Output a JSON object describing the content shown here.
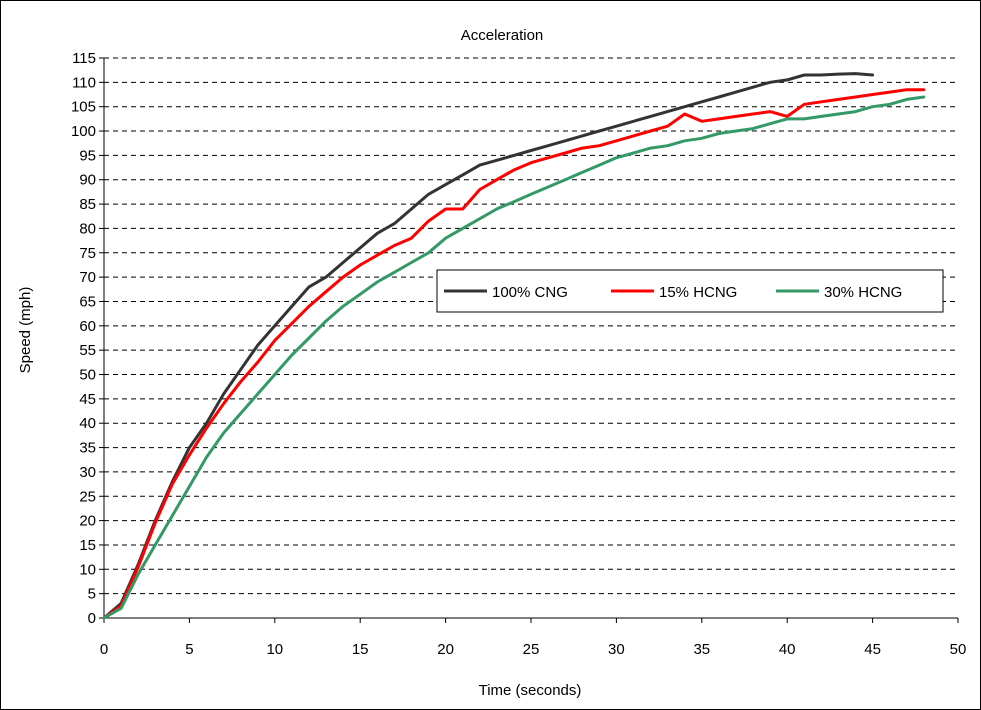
{
  "chart_data": {
    "type": "line",
    "title": "Acceleration",
    "xlabel": "Time (seconds)",
    "ylabel": "Speed (mph)",
    "xlim": [
      0,
      50
    ],
    "ylim": [
      0,
      115
    ],
    "x_ticks": [
      "0",
      "5",
      "10",
      "15",
      "20",
      "25",
      "30",
      "35",
      "40",
      "45",
      "50"
    ],
    "y_ticks": [
      "0",
      "5",
      "10",
      "15",
      "20",
      "25",
      "30",
      "35",
      "40",
      "45",
      "50",
      "55",
      "60",
      "65",
      "70",
      "75",
      "80",
      "85",
      "90",
      "95",
      "100",
      "105",
      "110",
      "115"
    ],
    "grid": "horizontal dashed",
    "legend_position": "center-right",
    "series": [
      {
        "name": "100% CNG",
        "color": "#333333",
        "points": [
          [
            0,
            0
          ],
          [
            1,
            3
          ],
          [
            2,
            11
          ],
          [
            3,
            20
          ],
          [
            4,
            28
          ],
          [
            5,
            35
          ],
          [
            6,
            40
          ],
          [
            7,
            46
          ],
          [
            8,
            51
          ],
          [
            9,
            56
          ],
          [
            10,
            60
          ],
          [
            11,
            64
          ],
          [
            12,
            68
          ],
          [
            13,
            70
          ],
          [
            14,
            73
          ],
          [
            15,
            76
          ],
          [
            16,
            79
          ],
          [
            17,
            81
          ],
          [
            18,
            84
          ],
          [
            19,
            87
          ],
          [
            20,
            89
          ],
          [
            21,
            91
          ],
          [
            22,
            93
          ],
          [
            23,
            94
          ],
          [
            24,
            95
          ],
          [
            25,
            96
          ],
          [
            26,
            97
          ],
          [
            27,
            98
          ],
          [
            28,
            99
          ],
          [
            29,
            100
          ],
          [
            30,
            101
          ],
          [
            31,
            102
          ],
          [
            32,
            103
          ],
          [
            33,
            104
          ],
          [
            34,
            105
          ],
          [
            35,
            106
          ],
          [
            36,
            107
          ],
          [
            37,
            108
          ],
          [
            38,
            109
          ],
          [
            39,
            110
          ],
          [
            40,
            110.5
          ],
          [
            41,
            111.5
          ],
          [
            42,
            111.5
          ],
          [
            43,
            111.7
          ],
          [
            44,
            111.8
          ],
          [
            45,
            111.5
          ]
        ]
      },
      {
        "name": "15% HCNG",
        "color": "#ff0000",
        "points": [
          [
            0,
            0
          ],
          [
            1,
            2.5
          ],
          [
            2,
            10.5
          ],
          [
            3,
            19.5
          ],
          [
            4,
            27.5
          ],
          [
            5,
            33.5
          ],
          [
            6,
            39
          ],
          [
            7,
            44
          ],
          [
            8,
            48.5
          ],
          [
            9,
            52.5
          ],
          [
            10,
            57
          ],
          [
            11,
            60.5
          ],
          [
            12,
            64
          ],
          [
            13,
            67
          ],
          [
            14,
            70
          ],
          [
            15,
            72.5
          ],
          [
            16,
            74.5
          ],
          [
            17,
            76.5
          ],
          [
            18,
            78
          ],
          [
            19,
            81.5
          ],
          [
            20,
            84
          ],
          [
            21,
            84
          ],
          [
            22,
            88
          ],
          [
            23,
            90
          ],
          [
            24,
            92
          ],
          [
            25,
            93.5
          ],
          [
            26,
            94.5
          ],
          [
            27,
            95.5
          ],
          [
            28,
            96.5
          ],
          [
            29,
            97
          ],
          [
            30,
            98
          ],
          [
            31,
            99
          ],
          [
            32,
            100
          ],
          [
            33,
            101
          ],
          [
            34,
            103.5
          ],
          [
            35,
            102
          ],
          [
            36,
            102.5
          ],
          [
            37,
            103
          ],
          [
            38,
            103.5
          ],
          [
            39,
            104
          ],
          [
            40,
            103
          ],
          [
            41,
            105.5
          ],
          [
            42,
            106
          ],
          [
            43,
            106.5
          ],
          [
            44,
            107
          ],
          [
            45,
            107.5
          ],
          [
            46,
            108
          ],
          [
            47,
            108.5
          ],
          [
            48,
            108.5
          ]
        ]
      },
      {
        "name": "30% HCNG",
        "color": "#339966",
        "points": [
          [
            0,
            0
          ],
          [
            1,
            2
          ],
          [
            2,
            9
          ],
          [
            3,
            15
          ],
          [
            4,
            21
          ],
          [
            5,
            27
          ],
          [
            6,
            33
          ],
          [
            7,
            38
          ],
          [
            8,
            42
          ],
          [
            9,
            46
          ],
          [
            10,
            50
          ],
          [
            11,
            54
          ],
          [
            12,
            57.5
          ],
          [
            13,
            61
          ],
          [
            14,
            64
          ],
          [
            15,
            66.5
          ],
          [
            16,
            69
          ],
          [
            17,
            71
          ],
          [
            18,
            73
          ],
          [
            19,
            75
          ],
          [
            20,
            78
          ],
          [
            21,
            80
          ],
          [
            22,
            82
          ],
          [
            23,
            84
          ],
          [
            24,
            85.5
          ],
          [
            25,
            87
          ],
          [
            26,
            88.5
          ],
          [
            27,
            90
          ],
          [
            28,
            91.5
          ],
          [
            29,
            93
          ],
          [
            30,
            94.5
          ],
          [
            31,
            95.5
          ],
          [
            32,
            96.5
          ],
          [
            33,
            97
          ],
          [
            34,
            98
          ],
          [
            35,
            98.5
          ],
          [
            36,
            99.5
          ],
          [
            37,
            100
          ],
          [
            38,
            100.5
          ],
          [
            39,
            101.5
          ],
          [
            40,
            102.5
          ],
          [
            41,
            102.5
          ],
          [
            42,
            103
          ],
          [
            43,
            103.5
          ],
          [
            44,
            104
          ],
          [
            45,
            105
          ],
          [
            46,
            105.5
          ],
          [
            47,
            106.5
          ],
          [
            48,
            107
          ]
        ]
      }
    ]
  }
}
